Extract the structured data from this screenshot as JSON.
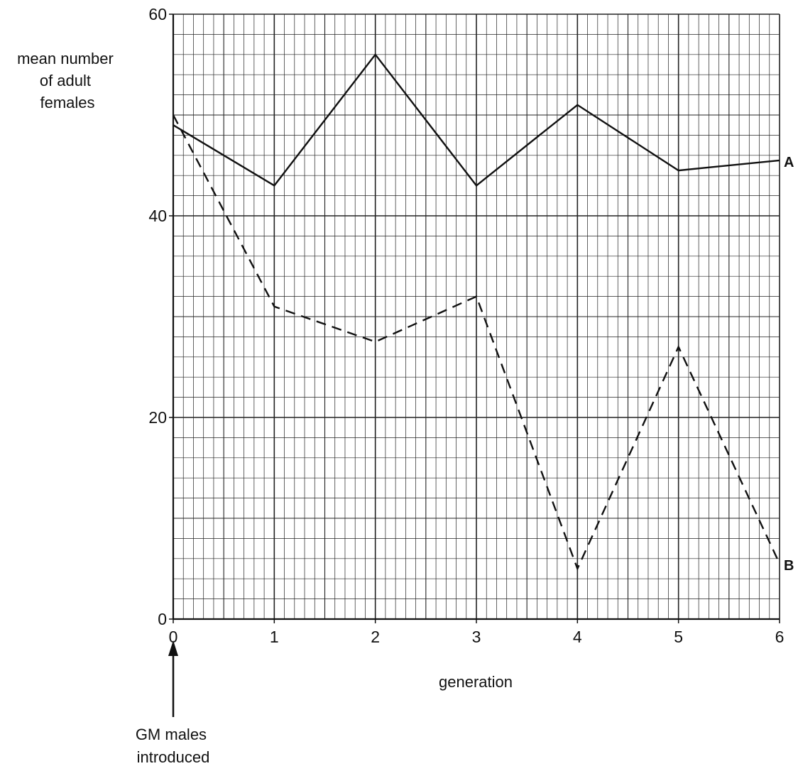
{
  "chart_data": {
    "type": "line",
    "title": "",
    "xlabel": "generation",
    "ylabel_lines": [
      "mean number",
      "of adult",
      "females"
    ],
    "x": [
      0,
      1,
      2,
      3,
      4,
      5,
      6
    ],
    "xlim": [
      0,
      6
    ],
    "ylim": [
      0,
      60
    ],
    "x_ticks": [
      0,
      1,
      2,
      3,
      4,
      5,
      6
    ],
    "y_ticks": [
      0,
      20,
      40,
      60
    ],
    "grid": true,
    "series": [
      {
        "name": "A",
        "style": "solid",
        "values": [
          49,
          43,
          56,
          43,
          51,
          44.5,
          45.5
        ]
      },
      {
        "name": "B",
        "style": "dashed",
        "values": [
          50,
          31,
          27.5,
          32,
          5,
          27,
          5.5
        ]
      }
    ],
    "annotation": {
      "x": 0,
      "lines": [
        "GM males",
        "introduced"
      ]
    }
  }
}
